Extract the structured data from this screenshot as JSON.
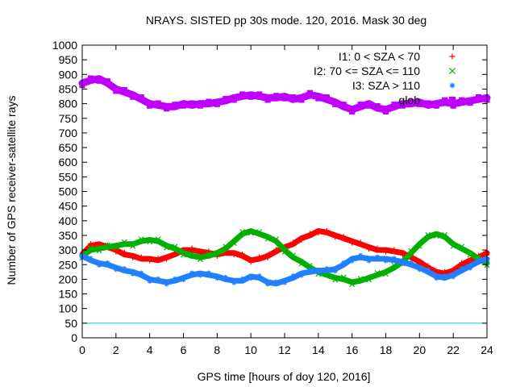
{
  "chart_data": {
    "type": "scatter",
    "title": "NRAYS. SISTED pp 30s mode. 120, 2016. Mask 30 deg",
    "xlabel": "GPS time [hours of doy 120, 2016]",
    "ylabel": "Number of GPS receiver-satellite rays",
    "xlim": [
      0,
      24
    ],
    "ylim": [
      0,
      1000
    ],
    "xticks": [
      "0",
      "2",
      "4",
      "6",
      "8",
      "10",
      "12",
      "14",
      "16",
      "18",
      "20",
      "22",
      "24"
    ],
    "yticks": [
      "0",
      "50",
      "100",
      "150",
      "200",
      "250",
      "300",
      "350",
      "400",
      "450",
      "500",
      "550",
      "600",
      "650",
      "700",
      "750",
      "800",
      "850",
      "900",
      "950",
      "1000"
    ],
    "legend_position": "top-right",
    "series": [
      {
        "name": "I1: 0 < SZA < 70",
        "color": "#ff0000",
        "marker": "+",
        "x": [
          0,
          0.5,
          1,
          1.5,
          2,
          2.5,
          3,
          3.5,
          4,
          4.5,
          5,
          5.5,
          6,
          6.5,
          7,
          7.5,
          8,
          8.5,
          9,
          9.5,
          10,
          10.5,
          11,
          11.5,
          12,
          12.5,
          13,
          13.5,
          14,
          14.5,
          15,
          15.5,
          16,
          16.5,
          17,
          17.5,
          18,
          18.5,
          19,
          19.5,
          20,
          20.5,
          21,
          21.5,
          22,
          22.5,
          23,
          23.5,
          24
        ],
        "y": [
          285,
          315,
          320,
          310,
          300,
          285,
          280,
          270,
          270,
          265,
          275,
          285,
          300,
          300,
          295,
          290,
          285,
          290,
          290,
          280,
          265,
          270,
          280,
          295,
          310,
          320,
          340,
          350,
          365,
          360,
          350,
          340,
          330,
          320,
          310,
          300,
          300,
          295,
          290,
          275,
          260,
          240,
          225,
          220,
          230,
          250,
          265,
          275,
          290
        ]
      },
      {
        "name": "I2: 70 <= SZA <= 110",
        "color": "#00b000",
        "marker": "x",
        "x": [
          0,
          0.5,
          1,
          1.5,
          2,
          2.5,
          3,
          3.5,
          4,
          4.5,
          5,
          5.5,
          6,
          6.5,
          7,
          7.5,
          8,
          8.5,
          9,
          9.5,
          10,
          10.5,
          11,
          11.5,
          12,
          12.5,
          13,
          13.5,
          14,
          14.5,
          15,
          15.5,
          16,
          16.5,
          17,
          17.5,
          18,
          18.5,
          19,
          19.5,
          20,
          20.5,
          21,
          21.5,
          22,
          22.5,
          23,
          23.5,
          24
        ],
        "y": [
          280,
          300,
          305,
          310,
          315,
          320,
          320,
          330,
          335,
          330,
          315,
          305,
          290,
          280,
          275,
          280,
          290,
          305,
          330,
          355,
          365,
          355,
          345,
          330,
          300,
          275,
          260,
          240,
          225,
          215,
          205,
          200,
          190,
          195,
          205,
          215,
          225,
          240,
          260,
          290,
          320,
          345,
          355,
          345,
          320,
          305,
          290,
          270,
          255
        ]
      },
      {
        "name": "I3: SZA > 110",
        "color": "#2080ff",
        "marker": "*",
        "x": [
          0,
          0.5,
          1,
          1.5,
          2,
          2.5,
          3,
          3.5,
          4,
          4.5,
          5,
          5.5,
          6,
          6.5,
          7,
          7.5,
          8,
          8.5,
          9,
          9.5,
          10,
          10.5,
          11,
          11.5,
          12,
          12.5,
          13,
          13.5,
          14,
          14.5,
          15,
          15.5,
          16,
          16.5,
          17,
          17.5,
          18,
          18.5,
          19,
          19.5,
          20,
          20.5,
          21,
          21.5,
          22,
          22.5,
          23,
          23.5,
          24
        ],
        "y": [
          280,
          265,
          255,
          250,
          240,
          230,
          225,
          215,
          200,
          195,
          190,
          195,
          205,
          215,
          220,
          215,
          210,
          200,
          195,
          195,
          210,
          205,
          190,
          185,
          195,
          205,
          220,
          225,
          230,
          230,
          235,
          250,
          270,
          275,
          270,
          270,
          270,
          265,
          260,
          250,
          240,
          225,
          210,
          205,
          215,
          230,
          245,
          260,
          270
        ]
      },
      {
        "name": "glob",
        "color": "#c000ff",
        "marker": "square",
        "x": [
          0,
          0.5,
          1,
          1.5,
          2,
          2.5,
          3,
          3.5,
          4,
          4.5,
          5,
          5.5,
          6,
          6.5,
          7,
          7.5,
          8,
          8.5,
          9,
          9.5,
          10,
          10.5,
          11,
          11.5,
          12,
          12.5,
          13,
          13.5,
          14,
          14.5,
          15,
          15.5,
          16,
          16.5,
          17,
          17.5,
          18,
          18.5,
          19,
          19.5,
          20,
          20.5,
          21,
          21.5,
          22,
          22.5,
          23,
          23.5,
          24
        ],
        "y": [
          870,
          880,
          885,
          870,
          850,
          840,
          830,
          815,
          800,
          795,
          790,
          790,
          800,
          795,
          800,
          800,
          805,
          810,
          820,
          825,
          830,
          825,
          820,
          820,
          825,
          815,
          820,
          830,
          825,
          815,
          805,
          790,
          780,
          790,
          800,
          785,
          780,
          790,
          800,
          800,
          805,
          795,
          800,
          805,
          800,
          805,
          810,
          815,
          820
        ]
      }
    ],
    "hline": {
      "value": 50,
      "color": "#00c0c0"
    }
  }
}
